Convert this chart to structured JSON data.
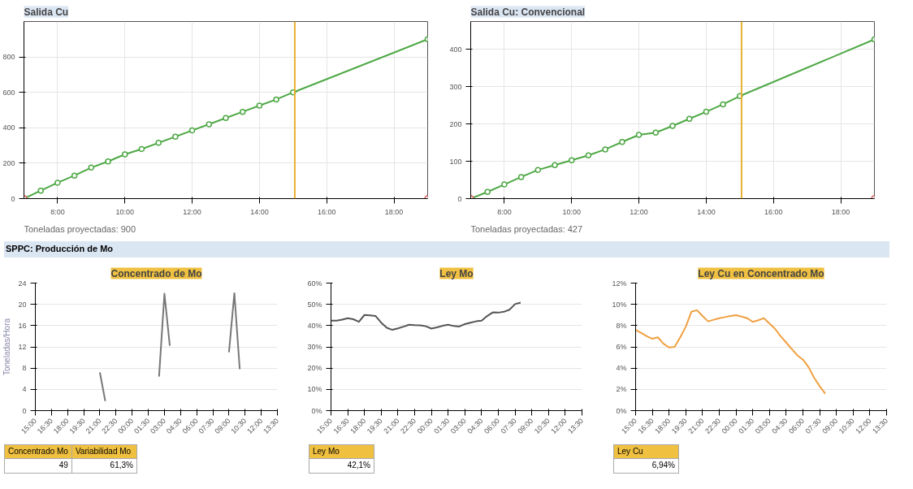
{
  "chart_data": [
    {
      "type": "line",
      "title": "Salida Cu",
      "xlim": [
        7,
        19
      ],
      "ylim": [
        0,
        1000
      ],
      "xticks": [
        {
          "value": 8,
          "label": "8:00"
        },
        {
          "value": 10,
          "label": "10:00"
        },
        {
          "value": 12,
          "label": "12:00"
        },
        {
          "value": 14,
          "label": "14:00"
        },
        {
          "value": 16,
          "label": "16:00"
        },
        {
          "value": 18,
          "label": "18:00"
        }
      ],
      "yticks": [
        0,
        200,
        400,
        600,
        800
      ],
      "grid": true,
      "marker": "circle",
      "line_style": "solid",
      "series": [
        {
          "color": "#4ea845",
          "x": [
            7,
            7.5,
            8,
            8.5,
            9,
            9.5,
            10,
            10.5,
            11,
            11.5,
            12,
            12.5,
            13,
            13.5,
            14,
            14.5,
            15,
            19
          ],
          "values": [
            0,
            45,
            90,
            130,
            175,
            210,
            250,
            280,
            315,
            350,
            385,
            420,
            455,
            490,
            525,
            560,
            600,
            900
          ]
        },
        {
          "type": "scatter",
          "color": "#d9534f",
          "x": [
            7,
            19
          ],
          "values": [
            0,
            0
          ]
        }
      ],
      "ref_lines": [
        {
          "axis": "x",
          "value": 15.05,
          "color": "#e8b030"
        }
      ],
      "annotations": [
        "Toneladas proyectadas: 900"
      ]
    },
    {
      "type": "line",
      "title": "Salida Cu: Convencional",
      "xlim": [
        7,
        19
      ],
      "ylim": [
        0,
        475
      ],
      "xticks": [
        {
          "value": 8,
          "label": "8:00"
        },
        {
          "value": 10,
          "label": "10:00"
        },
        {
          "value": 12,
          "label": "12:00"
        },
        {
          "value": 14,
          "label": "14:00"
        },
        {
          "value": 16,
          "label": "16:00"
        },
        {
          "value": 18,
          "label": "18:00"
        }
      ],
      "yticks": [
        0,
        100,
        200,
        300,
        400
      ],
      "grid": true,
      "marker": "circle",
      "line_style": "solid",
      "series": [
        {
          "color": "#4ea845",
          "x": [
            7,
            7.5,
            8,
            8.5,
            9,
            9.5,
            10,
            10.5,
            11,
            11.5,
            12,
            12.5,
            13,
            13.5,
            14,
            14.5,
            15,
            19
          ],
          "values": [
            0,
            18,
            38,
            58,
            77,
            90,
            103,
            116,
            132,
            152,
            171,
            177,
            195,
            214,
            233,
            253,
            275,
            427
          ]
        },
        {
          "type": "scatter",
          "color": "#d9534f",
          "x": [
            7,
            19
          ],
          "values": [
            0,
            0
          ]
        }
      ],
      "ref_lines": [
        {
          "axis": "x",
          "value": 15.05,
          "color": "#e8b030"
        }
      ],
      "annotations": [
        "Toneladas proyectadas: 427"
      ]
    },
    {
      "type": "line",
      "title": "Concentrado de Mo",
      "subtitle": "SPPC: Producción de Mo",
      "ylabel": "Toneladas/Hora",
      "ylim": [
        0,
        24
      ],
      "categories": [
        "15:00",
        null,
        null,
        "16:30",
        null,
        null,
        "18:00",
        null,
        null,
        "19:30",
        null,
        null,
        "21:00",
        null,
        null,
        "22:30",
        null,
        null,
        "00:00",
        null,
        null,
        "01:30",
        null,
        null,
        "03:00",
        null,
        null,
        "04:30",
        null,
        null,
        "06:00",
        null,
        null,
        "07:30",
        null,
        null,
        "09:00",
        null,
        null,
        "10:30",
        null,
        null,
        "12:00",
        null,
        null,
        "13:30"
      ],
      "yticks": [
        0,
        4,
        8,
        12,
        16,
        20,
        24
      ],
      "grid": "y",
      "series": [
        {
          "color": "#777777",
          "values": [
            null,
            null,
            null,
            null,
            null,
            null,
            null,
            null,
            null,
            null,
            null,
            null,
            7.2,
            1.8,
            null,
            null,
            null,
            null,
            null,
            null,
            null,
            null,
            null,
            6.4,
            22,
            12.2,
            null,
            null,
            null,
            null,
            null,
            null,
            null,
            null,
            null,
            null,
            11,
            22.1,
            7.8,
            null,
            null,
            null,
            null,
            null,
            null,
            null
          ]
        }
      ],
      "annotations": [
        "Concentrado Mo",
        "Variabilidad Mo",
        "49",
        "61,3%"
      ]
    },
    {
      "type": "line",
      "title": "Ley Mo",
      "ylim": [
        0,
        60
      ],
      "categories": [
        "15:00",
        null,
        null,
        "16:30",
        null,
        null,
        "18:00",
        null,
        null,
        "19:30",
        null,
        null,
        "21:00",
        null,
        null,
        "22:30",
        null,
        null,
        "00:00",
        null,
        null,
        "01:30",
        null,
        null,
        "03:00",
        null,
        null,
        "04:30",
        null,
        null,
        "06:00",
        null,
        null,
        "07:30",
        null,
        null,
        "09:00",
        null,
        null,
        "10:30",
        null,
        null,
        "12:00",
        null,
        null,
        "13:30"
      ],
      "yticks": [
        {
          "value": 0,
          "label": "0%"
        },
        {
          "value": 10,
          "label": "10%"
        },
        {
          "value": 20,
          "label": "20%"
        },
        {
          "value": 30,
          "label": "30%"
        },
        {
          "value": 40,
          "label": "40%"
        },
        {
          "value": 50,
          "label": "50%"
        },
        {
          "value": 60,
          "label": "60%"
        }
      ],
      "grid": "y",
      "series": [
        {
          "color": "#555555",
          "values": [
            42.3,
            42.3,
            42.8,
            43.5,
            43,
            41.8,
            45,
            44.8,
            44.5,
            41.4,
            39,
            38,
            38.7,
            39.5,
            40.4,
            40.2,
            40.1,
            39.7,
            38.6,
            39.2,
            39.9,
            40.4,
            39.8,
            39.6,
            40.7,
            41.4,
            42,
            42.3,
            44.5,
            46.2,
            46.1,
            46.5,
            47.5,
            50.1,
            50.8,
            null,
            null,
            null,
            null,
            null,
            null,
            null,
            null,
            null,
            null,
            null
          ]
        }
      ],
      "annotations": [
        "Ley Mo",
        "42,1%"
      ]
    },
    {
      "type": "line",
      "title": "Ley Cu en Concentrado Mo",
      "ylim": [
        0,
        12
      ],
      "categories": [
        "15:00",
        null,
        null,
        "16:30",
        null,
        null,
        "18:00",
        null,
        null,
        "19:30",
        null,
        null,
        "21:00",
        null,
        null,
        "22:30",
        null,
        null,
        "00:00",
        null,
        null,
        "01:30",
        null,
        null,
        "03:00",
        null,
        null,
        "04:30",
        null,
        null,
        "06:00",
        null,
        null,
        "07:30",
        null,
        null,
        "09:00",
        null,
        null,
        "10:30",
        null,
        null,
        "12:00",
        null,
        null,
        "13:30"
      ],
      "yticks": [
        {
          "value": 0,
          "label": "0%"
        },
        {
          "value": 2,
          "label": "2%"
        },
        {
          "value": 4,
          "label": "4%"
        },
        {
          "value": 6,
          "label": "6%"
        },
        {
          "value": 8,
          "label": "8%"
        },
        {
          "value": 10,
          "label": "10%"
        },
        {
          "value": 12,
          "label": "12%"
        }
      ],
      "grid": "y",
      "series": [
        {
          "color": "#f0a040",
          "values": [
            7.6,
            7.3,
            7.0,
            6.76,
            6.9,
            6.3,
            5.94,
            6.0,
            6.9,
            7.9,
            9.3,
            9.45,
            8.9,
            8.4,
            8.55,
            8.7,
            8.8,
            8.9,
            8.98,
            8.85,
            8.7,
            8.35,
            8.5,
            8.7,
            8.2,
            7.7,
            7.0,
            6.4,
            5.8,
            5.2,
            4.8,
            4.1,
            3.1,
            2.3,
            1.6,
            null,
            null,
            null,
            null,
            null,
            null,
            null,
            null,
            null,
            null,
            null
          ]
        }
      ],
      "annotations": [
        "Ley Cu",
        "6,94%"
      ]
    }
  ]
}
